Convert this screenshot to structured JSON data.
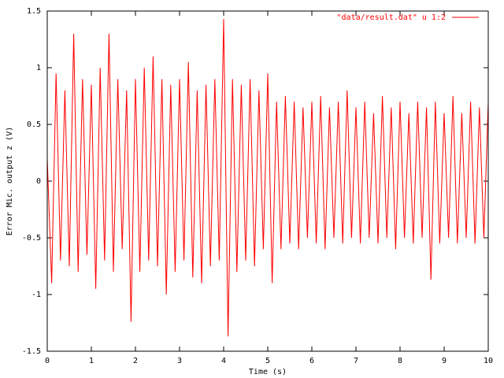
{
  "chart_data": {
    "type": "line",
    "x_label": "Time (s)",
    "y_label": "Error Mic. output z (V)",
    "xlim": [
      0,
      10
    ],
    "ylim": [
      -1.5,
      1.5
    ],
    "xticks": [
      0,
      1,
      2,
      3,
      4,
      5,
      6,
      7,
      8,
      9,
      10
    ],
    "yticks": [
      -1.5,
      -1,
      -0.5,
      0,
      0.5,
      1,
      1.5
    ],
    "legend": "top-right",
    "x": [
      0,
      0.1,
      0.2,
      0.3,
      0.4,
      0.5,
      0.6,
      0.7,
      0.8,
      0.9,
      1,
      1.1,
      1.2,
      1.3,
      1.4,
      1.5,
      1.6,
      1.7,
      1.8,
      1.9,
      2,
      2.1,
      2.2,
      2.3,
      2.4,
      2.5,
      2.6,
      2.7,
      2.8,
      2.9,
      3,
      3.1,
      3.2,
      3.3,
      3.4,
      3.5,
      3.6,
      3.7,
      3.8,
      3.9,
      4,
      4.1,
      4.2,
      4.3,
      4.4,
      4.5,
      4.6,
      4.7,
      4.8,
      4.9,
      5,
      5.1,
      5.2,
      5.3,
      5.4,
      5.5,
      5.6,
      5.7,
      5.8,
      5.9,
      6,
      6.1,
      6.2,
      6.3,
      6.4,
      6.5,
      6.6,
      6.7,
      6.8,
      6.9,
      7,
      7.1,
      7.2,
      7.3,
      7.4,
      7.5,
      7.6,
      7.7,
      7.8,
      7.9,
      8,
      8.1,
      8.2,
      8.3,
      8.4,
      8.5,
      8.6,
      8.7,
      8.8,
      8.9,
      9,
      9.1,
      9.2,
      9.3,
      9.4,
      9.5,
      9.6,
      9.7,
      9.8,
      9.9,
      10
    ],
    "series": [
      {
        "name": "\"data/result.dat\" u 1:2",
        "color": "#ff0000",
        "values": [
          0.2,
          -0.9,
          0.95,
          -0.7,
          0.8,
          -0.75,
          1.3,
          -0.8,
          0.9,
          -0.65,
          0.85,
          -0.95,
          1.0,
          -0.7,
          1.3,
          -0.8,
          0.9,
          -0.6,
          0.8,
          -1.24,
          0.9,
          -0.8,
          1.0,
          -0.7,
          1.1,
          -0.75,
          0.9,
          -1.0,
          0.85,
          -0.8,
          0.9,
          -0.7,
          1.05,
          -0.85,
          0.8,
          -0.9,
          0.85,
          -0.75,
          0.9,
          -0.7,
          1.43,
          -1.37,
          0.9,
          -0.8,
          0.85,
          -0.7,
          0.9,
          -0.75,
          0.8,
          -0.6,
          0.95,
          -0.9,
          0.7,
          -0.6,
          0.75,
          -0.55,
          0.7,
          -0.6,
          0.65,
          -0.5,
          0.7,
          -0.55,
          0.75,
          -0.6,
          0.65,
          -0.5,
          0.7,
          -0.55,
          0.8,
          -0.5,
          0.65,
          -0.55,
          0.7,
          -0.5,
          0.6,
          -0.55,
          0.75,
          -0.5,
          0.65,
          -0.6,
          0.7,
          -0.5,
          0.6,
          -0.55,
          0.7,
          -0.5,
          0.65,
          -0.87,
          0.7,
          -0.55,
          0.6,
          -0.5,
          0.75,
          -0.55,
          0.6,
          -0.5,
          0.7,
          -0.55,
          0.65,
          -0.5,
          0.7
        ]
      }
    ]
  }
}
